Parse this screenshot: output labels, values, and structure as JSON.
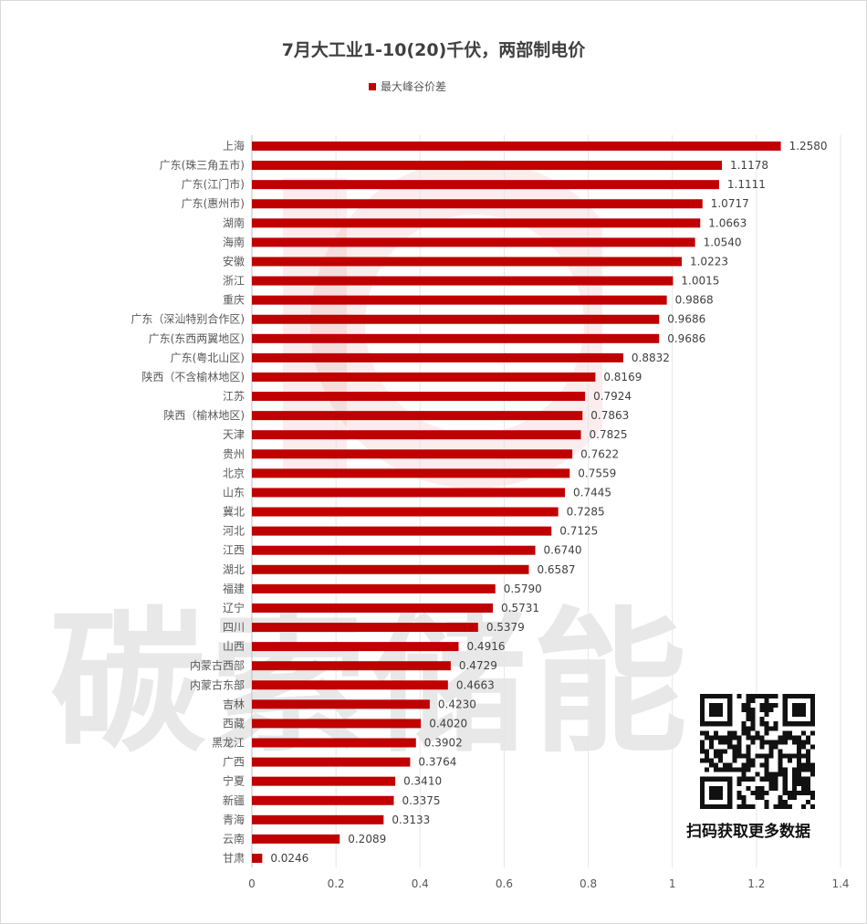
{
  "chart_data": {
    "type": "bar",
    "orientation": "horizontal",
    "title": "7月大工业1-10(20)千伏，两部制电价",
    "legend": {
      "position": "top",
      "entries": [
        "最大峰谷价差"
      ]
    },
    "series": [
      {
        "name": "最大峰谷价差",
        "color": "#c00000",
        "values": [
          1.258,
          1.1178,
          1.1111,
          1.0717,
          1.0663,
          1.054,
          1.0223,
          1.0015,
          0.9868,
          0.9686,
          0.9686,
          0.8832,
          0.8169,
          0.7924,
          0.7863,
          0.7825,
          0.7622,
          0.7559,
          0.7445,
          0.7285,
          0.7125,
          0.674,
          0.6587,
          0.579,
          0.5731,
          0.5379,
          0.4916,
          0.4729,
          0.4663,
          0.423,
          0.402,
          0.3902,
          0.3764,
          0.341,
          0.3375,
          0.3133,
          0.2089,
          0.0246
        ]
      }
    ],
    "categories": [
      "上海",
      "广东(珠三角五市)",
      "广东(江门市)",
      "广东(惠州市)",
      "湖南",
      "海南",
      "安徽",
      "浙江",
      "重庆",
      "广东（深汕特别合作区)",
      "广东(东西两翼地区)",
      "广东(粤北山区)",
      "陕西（不含榆林地区)",
      "江苏",
      "陕西（榆林地区)",
      "天津",
      "贵州",
      "北京",
      "山东",
      "冀北",
      "河北",
      "江西",
      "湖北",
      "福建",
      "辽宁",
      "四川",
      "山西",
      "内蒙古西部",
      "内蒙古东部",
      "吉林",
      "西藏",
      "黑龙江",
      "广西",
      "宁夏",
      "新疆",
      "青海",
      "云南",
      "甘肃"
    ],
    "value_labels": [
      "1.2580",
      "1.1178",
      "1.1111",
      "1.0717",
      "1.0663",
      "1.0540",
      "1.0223",
      "1.0015",
      "0.9868",
      "0.9686",
      "0.9686",
      "0.8832",
      "0.8169",
      "0.7924",
      "0.7863",
      "0.7825",
      "0.7622",
      "0.7559",
      "0.7445",
      "0.7285",
      "0.7125",
      "0.6740",
      "0.6587",
      "0.5790",
      "0.5731",
      "0.5379",
      "0.4916",
      "0.4729",
      "0.4663",
      "0.4230",
      "0.4020",
      "0.3902",
      "0.3764",
      "0.3410",
      "0.3375",
      "0.3133",
      "0.2089",
      "0.0246"
    ],
    "xlim": [
      0,
      1.4
    ],
    "xticks": [
      "0",
      "0.2",
      "0.4",
      "0.6",
      "0.8",
      "1",
      "1.2",
      "1.4"
    ],
    "grid": true,
    "xlabel": "",
    "ylabel": ""
  },
  "watermark": "碳索储能",
  "qr_caption": "扫码获取更多数据"
}
